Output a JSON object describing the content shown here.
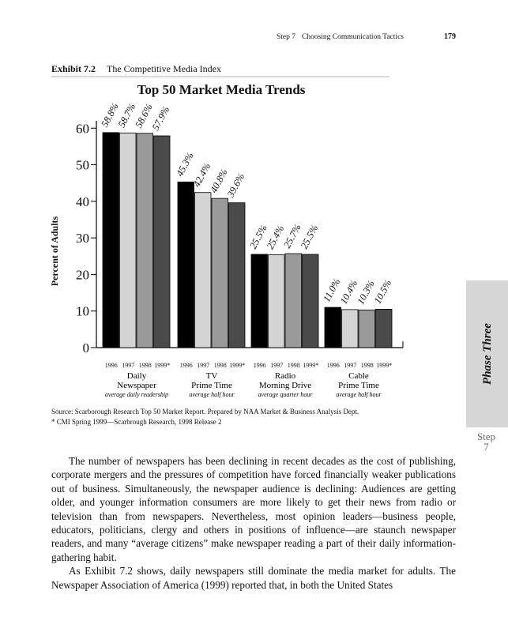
{
  "header": {
    "step": "Step 7",
    "section": "Choosing Communication Tactics",
    "page_number": "179"
  },
  "exhibit": {
    "label": "Exhibit 7.2",
    "title": "The Competitive Media Index"
  },
  "chart_data": {
    "type": "bar",
    "title": "Top 50 Market Media Trends",
    "ylabel": "Percent of Adults",
    "categories": [
      "Daily\nNewspaper",
      "TV\nPrime Time",
      "Radio\nMorning Drive",
      "Cable\nPrime Time"
    ],
    "category_notes": [
      "average daily readership",
      "average half hour",
      "average quarter hour",
      "average half hour"
    ],
    "series": [
      {
        "name": "1996",
        "color": "#000000",
        "values": [
          58.8,
          45.3,
          25.5,
          11.0
        ],
        "value_labels": [
          "58.8%",
          "45.3%",
          "25.5%",
          "11.0%"
        ]
      },
      {
        "name": "1997",
        "color": "#d4d4d4",
        "values": [
          58.7,
          42.4,
          25.4,
          10.4
        ],
        "value_labels": [
          "58.7%",
          "42.4%",
          "25.4%",
          "10.4%"
        ]
      },
      {
        "name": "1998",
        "color": "#9a9a9a",
        "values": [
          58.6,
          40.8,
          25.7,
          10.3
        ],
        "value_labels": [
          "58.6%",
          "40.8%",
          "25.7%",
          "10.3%"
        ]
      },
      {
        "name": "1999*",
        "color": "#4a4a4a",
        "values": [
          57.9,
          39.6,
          25.5,
          10.5
        ],
        "value_labels": [
          "57.9%",
          "39.6%",
          "25.5%",
          "10.5%"
        ]
      }
    ],
    "ylim": [
      0,
      62
    ],
    "yticks": [
      0,
      10,
      20,
      30,
      40,
      50,
      60
    ]
  },
  "source": [
    "Source: Scarborough Research Top 50 Market Report. Prepared by NAA Market & Business Analysis Dept.",
    "* CMI Spring 1999—Scarbrough Research, 1998 Release 2"
  ],
  "paragraphs": [
    "The number of newspapers has been declining in recent decades as the cost of publishing, corporate mergers and the pressures of competition have forced financially weaker publications out of business. Simultaneously, the newspaper audience is declining: Audiences are getting older, and younger information consumers are more likely to get their news from radio or television than from newspapers. Nevertheless, most opinion leaders—business people, educators, politicians, clergy and others in positions of influence—are staunch newspaper readers, and many “average citizens” make newspaper reading a part of their daily information-gathering habit.",
    "As Exhibit 7.2 shows, daily newspapers still dominate the media market for adults. The Newspaper Association of America (1999) reported that, in both the United States"
  ],
  "side_tab": {
    "phase": "Phase Three",
    "step": "Step\n7"
  }
}
